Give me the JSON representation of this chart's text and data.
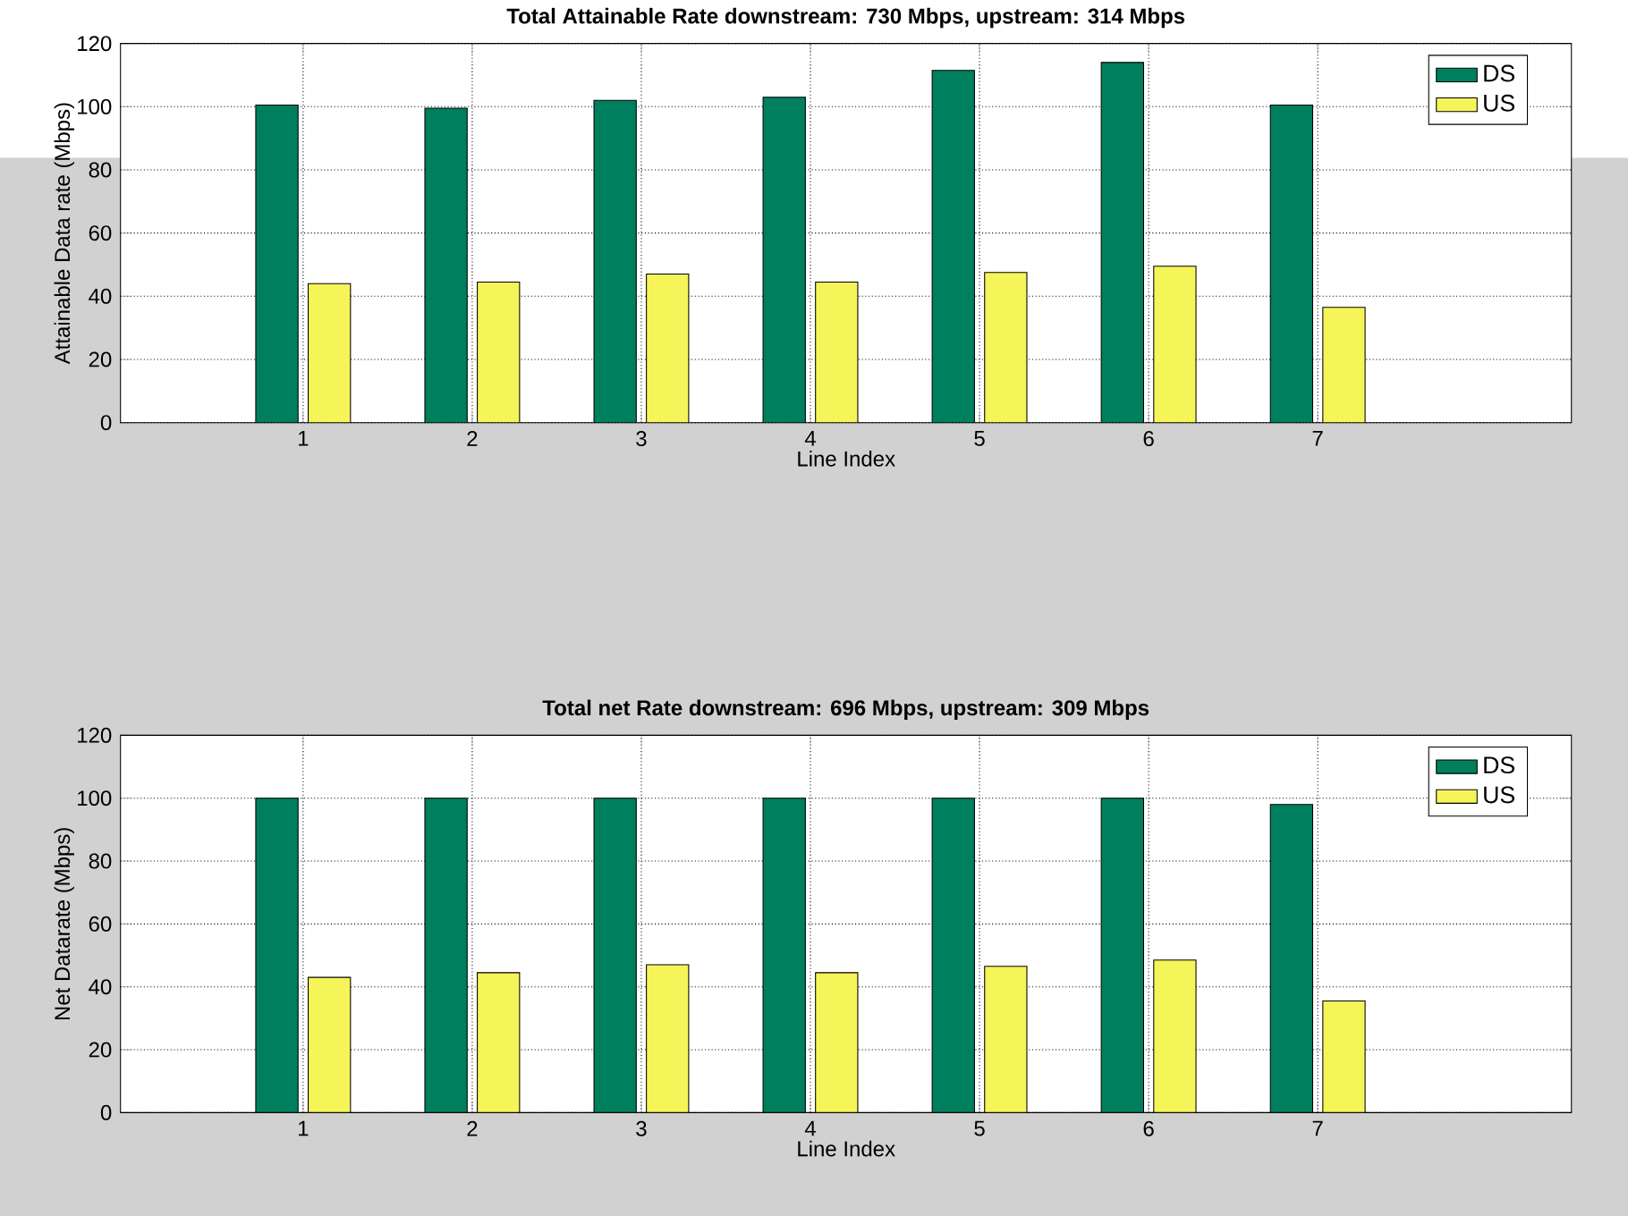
{
  "chart_data": [
    {
      "type": "bar",
      "title": "Total Attainable Rate downstream: 730 Mbps, upstream: 314 Mbps",
      "xlabel": "Line Index",
      "ylabel": "Attainable Data rate (Mbps)",
      "categories": [
        "1",
        "2",
        "3",
        "4",
        "5",
        "6",
        "7"
      ],
      "series": [
        {
          "name": "DS",
          "color": "#007f5f",
          "values": [
            100.5,
            99.5,
            102,
            103,
            111.5,
            114,
            100.5
          ]
        },
        {
          "name": "US",
          "color": "#f5f55a",
          "values": [
            44,
            44.5,
            47,
            44.5,
            47.5,
            49.5,
            36.5
          ]
        }
      ],
      "ylim": [
        0,
        120
      ],
      "yticks": [
        0,
        20,
        40,
        60,
        80,
        100,
        120
      ],
      "grid": true,
      "legend": "top right"
    },
    {
      "type": "bar",
      "title": "Total net Rate downstream: 696 Mbps, upstream: 309 Mbps",
      "xlabel": "Line Index",
      "ylabel": "Net Datarate (Mbps)",
      "categories": [
        "1",
        "2",
        "3",
        "4",
        "5",
        "6",
        "7"
      ],
      "series": [
        {
          "name": "DS",
          "color": "#007f5f",
          "values": [
            100,
            100,
            100,
            100,
            100,
            100,
            98
          ]
        },
        {
          "name": "US",
          "color": "#f5f55a",
          "values": [
            43,
            44.5,
            47,
            44.5,
            46.5,
            48.5,
            35.5
          ]
        }
      ],
      "ylim": [
        0,
        120
      ],
      "yticks": [
        0,
        20,
        40,
        60,
        80,
        100,
        120
      ],
      "grid": true,
      "legend": "top right"
    }
  ]
}
